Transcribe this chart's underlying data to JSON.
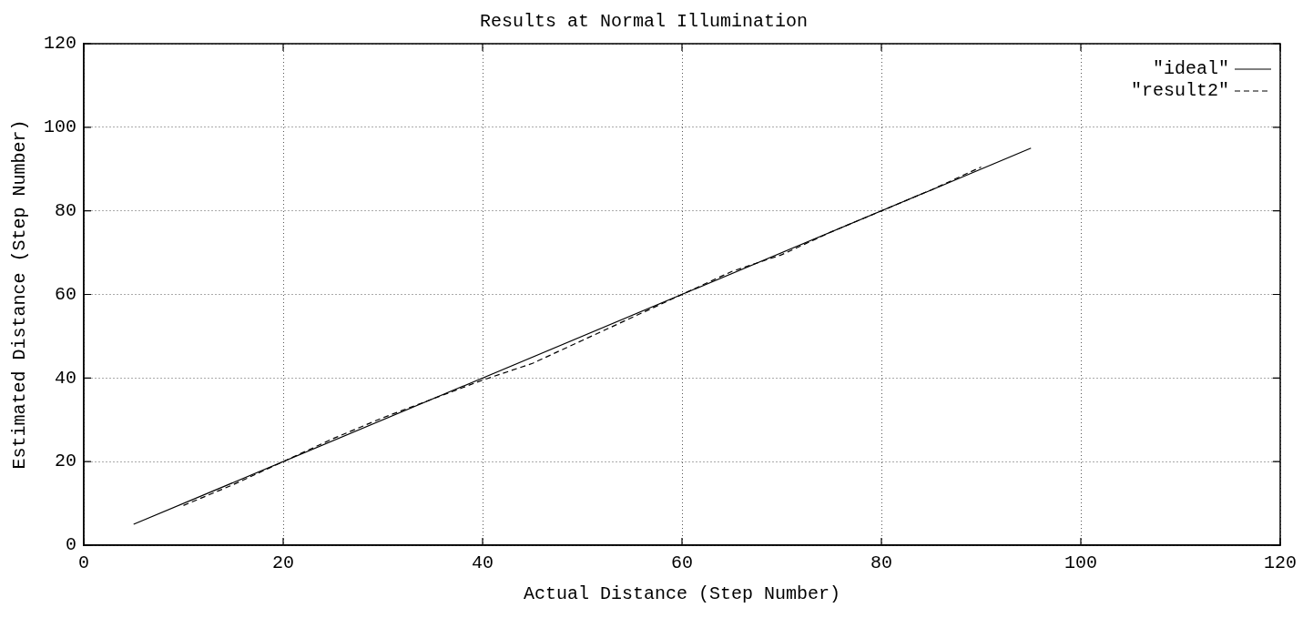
{
  "chart_data": {
    "type": "line",
    "title": "Results at Normal Illumination",
    "xlabel": "Actual Distance (Step Number)",
    "ylabel": "Estimated Distance (Step Number)",
    "xlim": [
      0,
      120
    ],
    "xticks": [
      0,
      20,
      40,
      60,
      80,
      100,
      120
    ],
    "ylim": [
      0,
      120
    ],
    "yticks": [
      0,
      20,
      40,
      60,
      80,
      100,
      120
    ],
    "grid": true,
    "legend": "top right",
    "marker": "none",
    "series": [
      {
        "name": "\"ideal\"",
        "color": "#000000",
        "line_style": "solid",
        "x": [
          5,
          95
        ],
        "values": [
          5,
          95
        ]
      },
      {
        "name": "\"result2\"",
        "color": "#000000",
        "line_style": "dashed",
        "x": [
          10,
          15,
          20,
          25,
          30,
          35,
          40,
          45,
          50,
          55,
          60,
          65,
          70,
          75,
          80,
          85,
          90
        ],
        "values": [
          9.5,
          14.5,
          20,
          25.5,
          30.5,
          35,
          39.5,
          43.5,
          49,
          54.5,
          60,
          65.5,
          69.5,
          75,
          80,
          85,
          90.5
        ]
      }
    ]
  }
}
